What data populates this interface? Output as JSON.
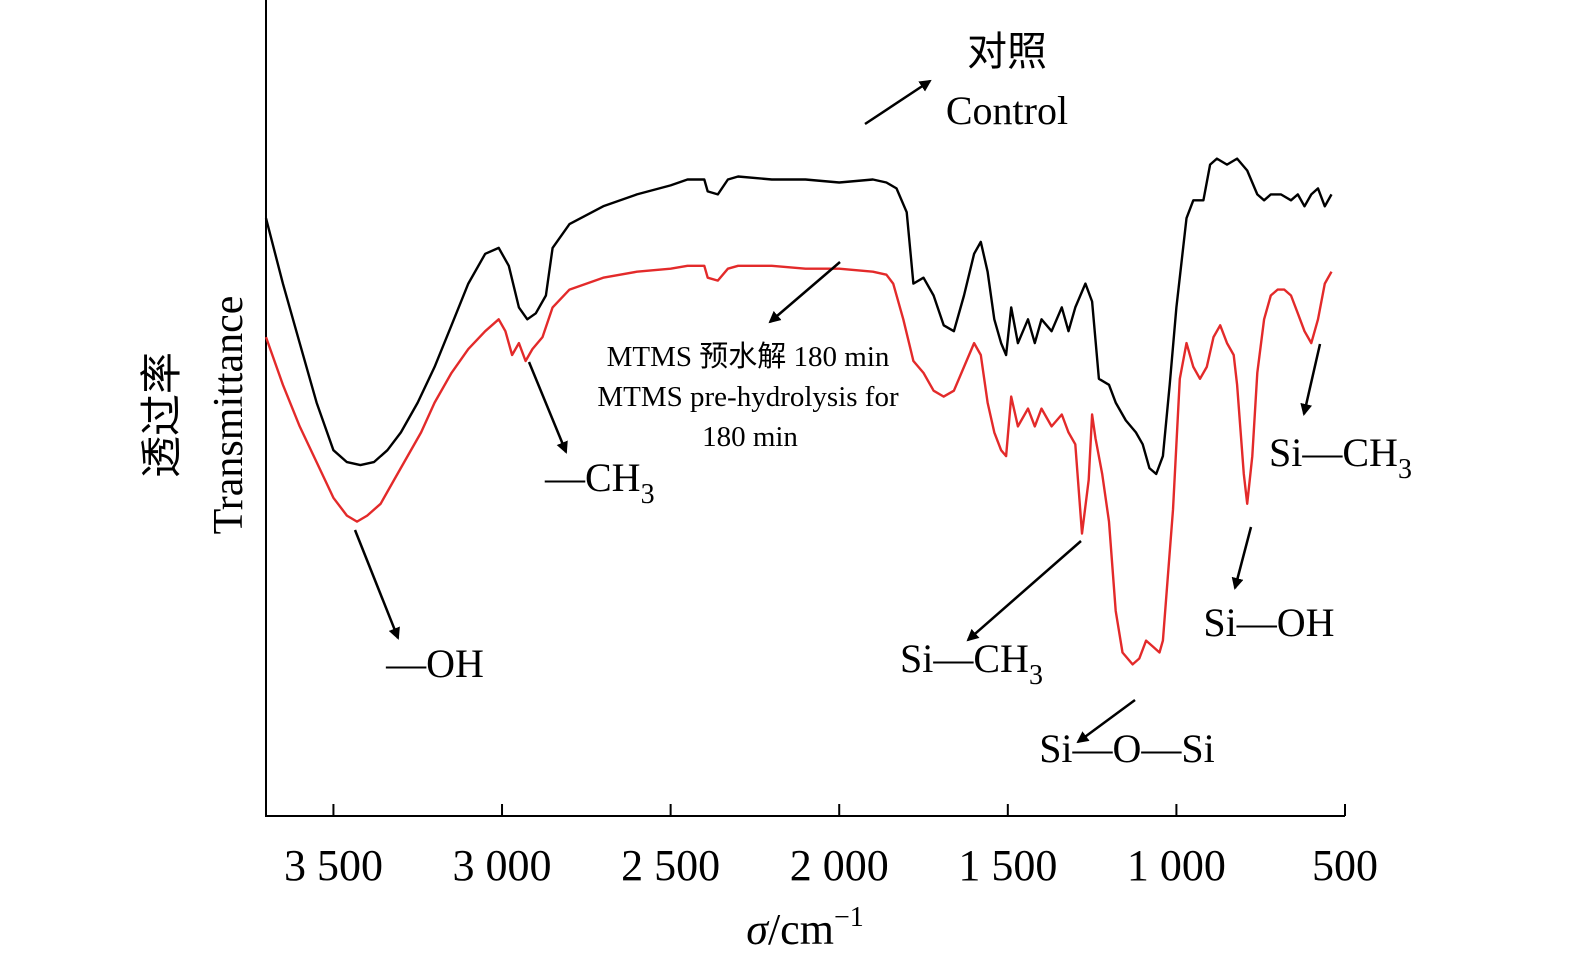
{
  "chart_data": {
    "type": "line",
    "title": "",
    "xlabel": "σ/cm⁻¹",
    "xlabel_symbol": "σ",
    "xlabel_unit": "/cm",
    "xlabel_exp": "−1",
    "ylabel_zh": "透过率",
    "ylabel_en": "Transmittance",
    "x_axis_reversed": true,
    "xlim": [
      3700,
      500
    ],
    "ylim": [
      0,
      100
    ],
    "y_ticks_shown": false,
    "grid": false,
    "x_ticks": [
      3500,
      3000,
      2500,
      2000,
      1500,
      1000,
      500
    ],
    "x_tick_labels": [
      "3 500",
      "3 000",
      "2 500",
      "2 000",
      "1 500",
      "1 000",
      "500"
    ],
    "series": [
      {
        "name": "对照 Control",
        "color": "#000000",
        "points": [
          [
            3700,
            83
          ],
          [
            3650,
            72
          ],
          [
            3600,
            62
          ],
          [
            3550,
            52
          ],
          [
            3500,
            44
          ],
          [
            3460,
            42
          ],
          [
            3420,
            41.5
          ],
          [
            3380,
            42
          ],
          [
            3340,
            44
          ],
          [
            3300,
            47
          ],
          [
            3250,
            52
          ],
          [
            3200,
            58
          ],
          [
            3150,
            65
          ],
          [
            3100,
            72
          ],
          [
            3050,
            77
          ],
          [
            3010,
            78
          ],
          [
            2980,
            75
          ],
          [
            2950,
            68
          ],
          [
            2925,
            66
          ],
          [
            2900,
            67
          ],
          [
            2870,
            70
          ],
          [
            2850,
            78
          ],
          [
            2800,
            82
          ],
          [
            2700,
            85
          ],
          [
            2600,
            87
          ],
          [
            2500,
            88.5
          ],
          [
            2450,
            89.5
          ],
          [
            2400,
            89.5
          ],
          [
            2390,
            87.5
          ],
          [
            2360,
            87
          ],
          [
            2330,
            89.5
          ],
          [
            2300,
            90
          ],
          [
            2200,
            89.5
          ],
          [
            2100,
            89.5
          ],
          [
            2000,
            89
          ],
          [
            1900,
            89.5
          ],
          [
            1860,
            89
          ],
          [
            1830,
            88
          ],
          [
            1800,
            84
          ],
          [
            1780,
            72
          ],
          [
            1750,
            73
          ],
          [
            1720,
            70
          ],
          [
            1690,
            65
          ],
          [
            1660,
            64
          ],
          [
            1630,
            70
          ],
          [
            1600,
            77
          ],
          [
            1580,
            79
          ],
          [
            1560,
            74
          ],
          [
            1540,
            66
          ],
          [
            1520,
            62
          ],
          [
            1505,
            60
          ],
          [
            1490,
            68
          ],
          [
            1470,
            62
          ],
          [
            1440,
            66
          ],
          [
            1420,
            62
          ],
          [
            1400,
            66
          ],
          [
            1370,
            64
          ],
          [
            1340,
            68
          ],
          [
            1320,
            64
          ],
          [
            1300,
            68
          ],
          [
            1270,
            72
          ],
          [
            1250,
            69
          ],
          [
            1230,
            56
          ],
          [
            1200,
            55
          ],
          [
            1180,
            52
          ],
          [
            1150,
            49
          ],
          [
            1120,
            47
          ],
          [
            1100,
            45
          ],
          [
            1080,
            41
          ],
          [
            1060,
            40
          ],
          [
            1040,
            43
          ],
          [
            1020,
            55
          ],
          [
            1000,
            68
          ],
          [
            970,
            83
          ],
          [
            950,
            86
          ],
          [
            920,
            86
          ],
          [
            900,
            92
          ],
          [
            880,
            93
          ],
          [
            850,
            92
          ],
          [
            820,
            93
          ],
          [
            790,
            91
          ],
          [
            760,
            87
          ],
          [
            740,
            86
          ],
          [
            720,
            87
          ],
          [
            690,
            87
          ],
          [
            660,
            86
          ],
          [
            640,
            87
          ],
          [
            620,
            85
          ],
          [
            600,
            87
          ],
          [
            580,
            88
          ],
          [
            560,
            85
          ],
          [
            540,
            87
          ]
        ]
      },
      {
        "name": "MTMS 预水解 180 min MTMS pre-hydrolysis for 180 min",
        "color": "#e32a2a",
        "points": [
          [
            3700,
            63
          ],
          [
            3650,
            55
          ],
          [
            3600,
            48
          ],
          [
            3550,
            42
          ],
          [
            3500,
            36
          ],
          [
            3460,
            33
          ],
          [
            3430,
            32
          ],
          [
            3400,
            33
          ],
          [
            3360,
            35
          ],
          [
            3320,
            39
          ],
          [
            3280,
            43
          ],
          [
            3240,
            47
          ],
          [
            3200,
            52
          ],
          [
            3150,
            57
          ],
          [
            3100,
            61
          ],
          [
            3050,
            64
          ],
          [
            3010,
            66
          ],
          [
            2990,
            64
          ],
          [
            2970,
            60
          ],
          [
            2950,
            62
          ],
          [
            2930,
            59
          ],
          [
            2910,
            61
          ],
          [
            2880,
            63
          ],
          [
            2850,
            68
          ],
          [
            2800,
            71
          ],
          [
            2700,
            73
          ],
          [
            2600,
            74
          ],
          [
            2500,
            74.5
          ],
          [
            2450,
            75
          ],
          [
            2400,
            75
          ],
          [
            2390,
            73
          ],
          [
            2360,
            72.5
          ],
          [
            2330,
            74.5
          ],
          [
            2300,
            75
          ],
          [
            2200,
            75
          ],
          [
            2100,
            74.5
          ],
          [
            2000,
            74.5
          ],
          [
            1900,
            74
          ],
          [
            1860,
            73.5
          ],
          [
            1840,
            72
          ],
          [
            1810,
            66
          ],
          [
            1780,
            59
          ],
          [
            1750,
            57
          ],
          [
            1720,
            54
          ],
          [
            1690,
            53
          ],
          [
            1660,
            54
          ],
          [
            1630,
            58
          ],
          [
            1600,
            62
          ],
          [
            1580,
            60
          ],
          [
            1560,
            52
          ],
          [
            1540,
            47
          ],
          [
            1520,
            44
          ],
          [
            1505,
            43
          ],
          [
            1490,
            53
          ],
          [
            1470,
            48
          ],
          [
            1440,
            51
          ],
          [
            1420,
            48
          ],
          [
            1400,
            51
          ],
          [
            1370,
            48
          ],
          [
            1340,
            50
          ],
          [
            1320,
            47
          ],
          [
            1300,
            45
          ],
          [
            1280,
            30
          ],
          [
            1260,
            39
          ],
          [
            1250,
            50
          ],
          [
            1240,
            46
          ],
          [
            1220,
            40
          ],
          [
            1200,
            32
          ],
          [
            1180,
            17
          ],
          [
            1160,
            10
          ],
          [
            1130,
            8
          ],
          [
            1110,
            9
          ],
          [
            1090,
            12
          ],
          [
            1070,
            11
          ],
          [
            1050,
            10
          ],
          [
            1040,
            12
          ],
          [
            1010,
            34
          ],
          [
            990,
            56
          ],
          [
            970,
            62
          ],
          [
            950,
            58
          ],
          [
            930,
            56
          ],
          [
            910,
            58
          ],
          [
            890,
            63
          ],
          [
            870,
            65
          ],
          [
            850,
            62
          ],
          [
            830,
            60
          ],
          [
            820,
            55
          ],
          [
            800,
            40
          ],
          [
            790,
            35
          ],
          [
            775,
            43
          ],
          [
            760,
            57
          ],
          [
            740,
            66
          ],
          [
            720,
            70
          ],
          [
            700,
            71
          ],
          [
            680,
            71
          ],
          [
            660,
            70
          ],
          [
            640,
            67
          ],
          [
            620,
            64
          ],
          [
            600,
            62
          ],
          [
            580,
            66
          ],
          [
            560,
            72
          ],
          [
            540,
            74
          ]
        ]
      }
    ],
    "annotations": [
      {
        "id": "oh",
        "text": "—OH"
      },
      {
        "id": "ch3",
        "text": "—CH",
        "sub": "3"
      },
      {
        "id": "sich3-a",
        "text": "Si—CH",
        "sub": "3"
      },
      {
        "id": "sios",
        "text": "Si—O—Si"
      },
      {
        "id": "sioh",
        "text": "Si—OH"
      },
      {
        "id": "sich3-b",
        "text": "Si—CH",
        "sub": "3"
      }
    ],
    "legend_control": {
      "zh": "对照",
      "en": "Control"
    },
    "legend_mtms": {
      "line1": "MTMS 预水解 180 min",
      "line2": "MTMS pre-hydrolysis for",
      "line3": "180 min"
    }
  }
}
